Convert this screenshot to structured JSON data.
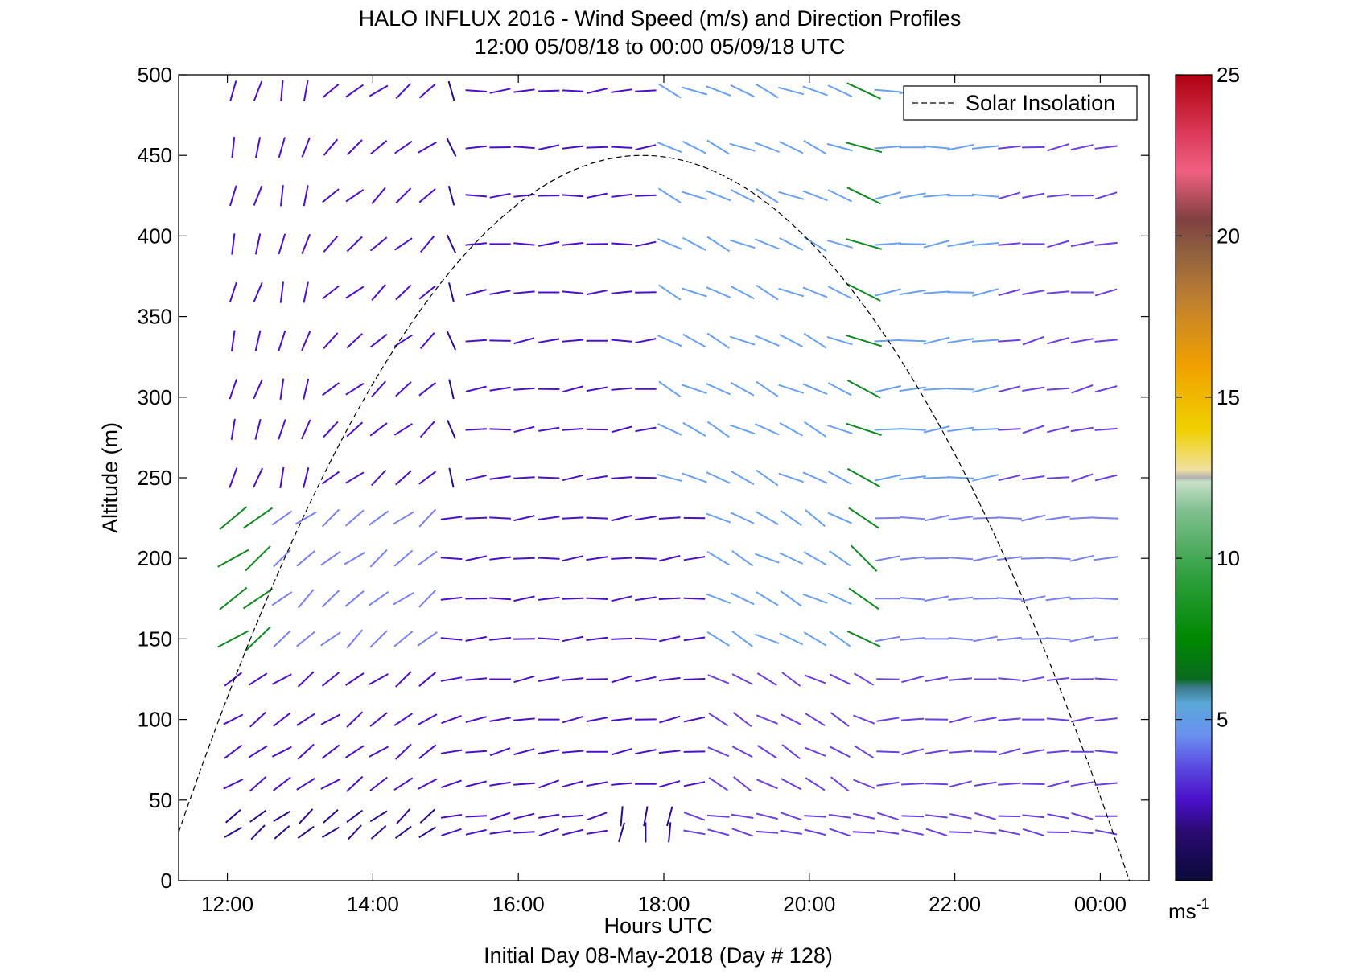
{
  "chart_data": {
    "type": "wind-barb-profile",
    "title": "HALO INFLUX 2016 - Wind Speed (m/s) and Direction Profiles",
    "subtitle": "12:00 05/08/18 to 00:00 05/09/18  UTC",
    "xlabel": "Hours UTC",
    "footer": "Initial Day 08-May-2018 (Day # 128)",
    "ylabel": "Altitude (m)",
    "xlim": [
      11.33,
      24.67
    ],
    "ylim": [
      0,
      500
    ],
    "x_ticks": [
      12,
      14,
      16,
      18,
      20,
      22,
      24
    ],
    "x_tick_labels": [
      "12:00",
      "14:00",
      "16:00",
      "18:00",
      "20:00",
      "22:00",
      "00:00"
    ],
    "y_ticks": [
      0,
      50,
      100,
      150,
      200,
      250,
      300,
      350,
      400,
      450,
      500
    ],
    "y_tick_labels": [
      "0",
      "50",
      "100",
      "150",
      "200",
      "250",
      "300",
      "350",
      "400",
      "450",
      "500"
    ],
    "legend": {
      "entries": [
        "Solar Insolation"
      ],
      "placement": "top-right"
    },
    "colorbar": {
      "min": 0,
      "max": 25,
      "ticks": [
        5,
        10,
        15,
        20,
        25
      ],
      "tick_labels": [
        "5",
        "10",
        "15",
        "20",
        "25"
      ],
      "unit_base": "ms",
      "unit_exp": "-1"
    },
    "solar_insolation": {
      "start_hour": 11.33,
      "peak_hour": 17.7,
      "peak_altitude": 450,
      "end_hour": 24.4
    },
    "wind": {
      "times": [
        12.08,
        12.42,
        12.75,
        13.08,
        13.42,
        13.75,
        14.08,
        14.42,
        14.75,
        15.08,
        15.42,
        15.75,
        16.08,
        16.42,
        16.75,
        17.08,
        17.42,
        17.75,
        18.08,
        18.42,
        18.75,
        19.08,
        19.42,
        19.75,
        20.08,
        20.42,
        20.75,
        21.08,
        21.42,
        21.75,
        22.08,
        22.42,
        22.75,
        23.08,
        23.42,
        23.75,
        24.08
      ],
      "altitudes": [
        30,
        40,
        60,
        80,
        100,
        125,
        150,
        175,
        200,
        225,
        250,
        280,
        305,
        335,
        365,
        395,
        425,
        455,
        490
      ],
      "segments": [
        {
          "alt_min": 0,
          "alt_max": 60,
          "t_min": 11.9,
          "t_max": 15.0,
          "dir_deg": 130,
          "speed": 2.0
        },
        {
          "alt_min": 0,
          "alt_max": 60,
          "t_min": 15.0,
          "t_max": 17.3,
          "dir_deg": 100,
          "speed": 2.6
        },
        {
          "alt_min": 0,
          "alt_max": 60,
          "t_min": 17.3,
          "t_max": 18.2,
          "dir_deg": 170,
          "speed": 2.2
        },
        {
          "alt_min": 0,
          "alt_max": 60,
          "t_min": 18.2,
          "t_max": 24.2,
          "dir_deg": 80,
          "speed": 3.0
        },
        {
          "alt_min": 60,
          "alt_max": 130,
          "t_min": 11.9,
          "t_max": 15.0,
          "dir_deg": 125,
          "speed": 2.8
        },
        {
          "alt_min": 60,
          "alt_max": 130,
          "t_min": 15.0,
          "t_max": 18.5,
          "dir_deg": 100,
          "speed": 2.7
        },
        {
          "alt_min": 60,
          "alt_max": 130,
          "t_min": 18.5,
          "t_max": 21.0,
          "dir_deg": 60,
          "speed": 3.2
        },
        {
          "alt_min": 60,
          "alt_max": 130,
          "t_min": 21.0,
          "t_max": 24.2,
          "dir_deg": 95,
          "speed": 3.2
        },
        {
          "alt_min": 130,
          "alt_max": 250,
          "t_min": 11.9,
          "t_max": 12.6,
          "dir_deg": 125,
          "speed": 8.0
        },
        {
          "alt_min": 130,
          "alt_max": 250,
          "t_min": 12.6,
          "t_max": 15.0,
          "dir_deg": 130,
          "speed": 3.6
        },
        {
          "alt_min": 130,
          "alt_max": 250,
          "t_min": 15.0,
          "t_max": 18.5,
          "dir_deg": 95,
          "speed": 2.7
        },
        {
          "alt_min": 130,
          "alt_max": 250,
          "t_min": 18.5,
          "t_max": 20.5,
          "dir_deg": 60,
          "speed": 4.4
        },
        {
          "alt_min": 130,
          "alt_max": 250,
          "t_min": 20.5,
          "t_max": 21.0,
          "dir_deg": 55,
          "speed": 8.5
        },
        {
          "alt_min": 130,
          "alt_max": 250,
          "t_min": 21.0,
          "t_max": 24.2,
          "dir_deg": 95,
          "speed": 4.0
        },
        {
          "alt_min": 250,
          "alt_max": 500,
          "t_min": 11.9,
          "t_max": 13.2,
          "dir_deg": 165,
          "speed": 2.6
        },
        {
          "alt_min": 250,
          "alt_max": 500,
          "t_min": 13.2,
          "t_max": 15.0,
          "dir_deg": 130,
          "speed": 2.5
        },
        {
          "alt_min": 250,
          "alt_max": 500,
          "t_min": 15.0,
          "t_max": 15.4,
          "dir_deg": 20,
          "speed": 2.2
        },
        {
          "alt_min": 250,
          "alt_max": 500,
          "t_min": 15.4,
          "t_max": 18.0,
          "dir_deg": 95,
          "speed": 2.6
        },
        {
          "alt_min": 250,
          "alt_max": 500,
          "t_min": 18.0,
          "t_max": 20.5,
          "dir_deg": 65,
          "speed": 4.6
        },
        {
          "alt_min": 250,
          "alt_max": 500,
          "t_min": 20.5,
          "t_max": 21.0,
          "dir_deg": 70,
          "speed": 8.8
        },
        {
          "alt_min": 250,
          "alt_max": 500,
          "t_min": 21.0,
          "t_max": 22.5,
          "dir_deg": 95,
          "speed": 4.8
        },
        {
          "alt_min": 250,
          "alt_max": 500,
          "t_min": 22.5,
          "t_max": 24.2,
          "dir_deg": 100,
          "speed": 3.2
        }
      ]
    }
  }
}
